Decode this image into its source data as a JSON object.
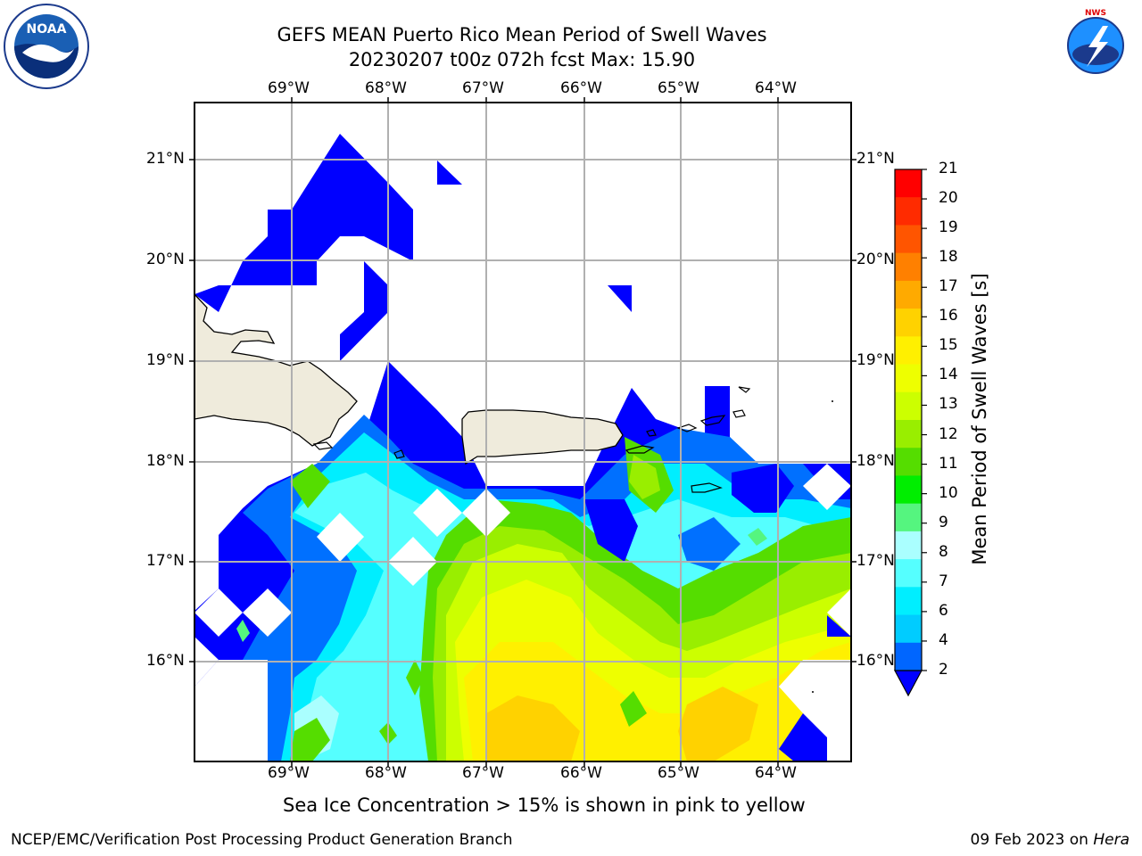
{
  "header": {
    "title_line1": "GEFS MEAN Puerto Rico Mean Period of Swell Waves",
    "title_line2": "20230207 t00z 072h fcst   Max: 15.90",
    "left_logo_icon": "noaa-logo-icon",
    "left_logo_text": "NOAA",
    "right_logo_icon": "nws-logo-icon",
    "right_logo_text": "NATIONAL WEATHER SERVICE"
  },
  "map": {
    "lon_labels": [
      "69°W",
      "68°W",
      "67°W",
      "66°W",
      "65°W",
      "64°W"
    ],
    "lat_labels": [
      "21°N",
      "20°N",
      "19°N",
      "18°N",
      "17°N",
      "16°N"
    ],
    "land_color": "#efebdc",
    "grid_color": "#b0b0b0"
  },
  "colorbar": {
    "label": "Mean Period of Swell Waves [s]",
    "ticks": [
      "21",
      "20",
      "19",
      "18",
      "17",
      "16",
      "15",
      "14",
      "13",
      "12",
      "11",
      "10",
      "9",
      "8",
      "7",
      "6",
      "4",
      "2"
    ],
    "colors": [
      "#ff0000",
      "#ff2b00",
      "#ff5500",
      "#ff8000",
      "#ffaa00",
      "#ffd200",
      "#fff000",
      "#eeff00",
      "#ccff00",
      "#99ee00",
      "#55dd00",
      "#00ee00",
      "#55f57f",
      "#aaffff",
      "#55ffff",
      "#00eeff",
      "#00ccff",
      "#0066ff"
    ],
    "extend_color": "#0000ff"
  },
  "notes": {
    "ice_note": "Sea Ice Concentration > 15% is shown in pink to yellow"
  },
  "footer": {
    "left": "NCEP/EMC/Verification Post Processing Product Generation Branch",
    "date": "09 Feb 2023 on ",
    "machine": "Hera"
  }
}
